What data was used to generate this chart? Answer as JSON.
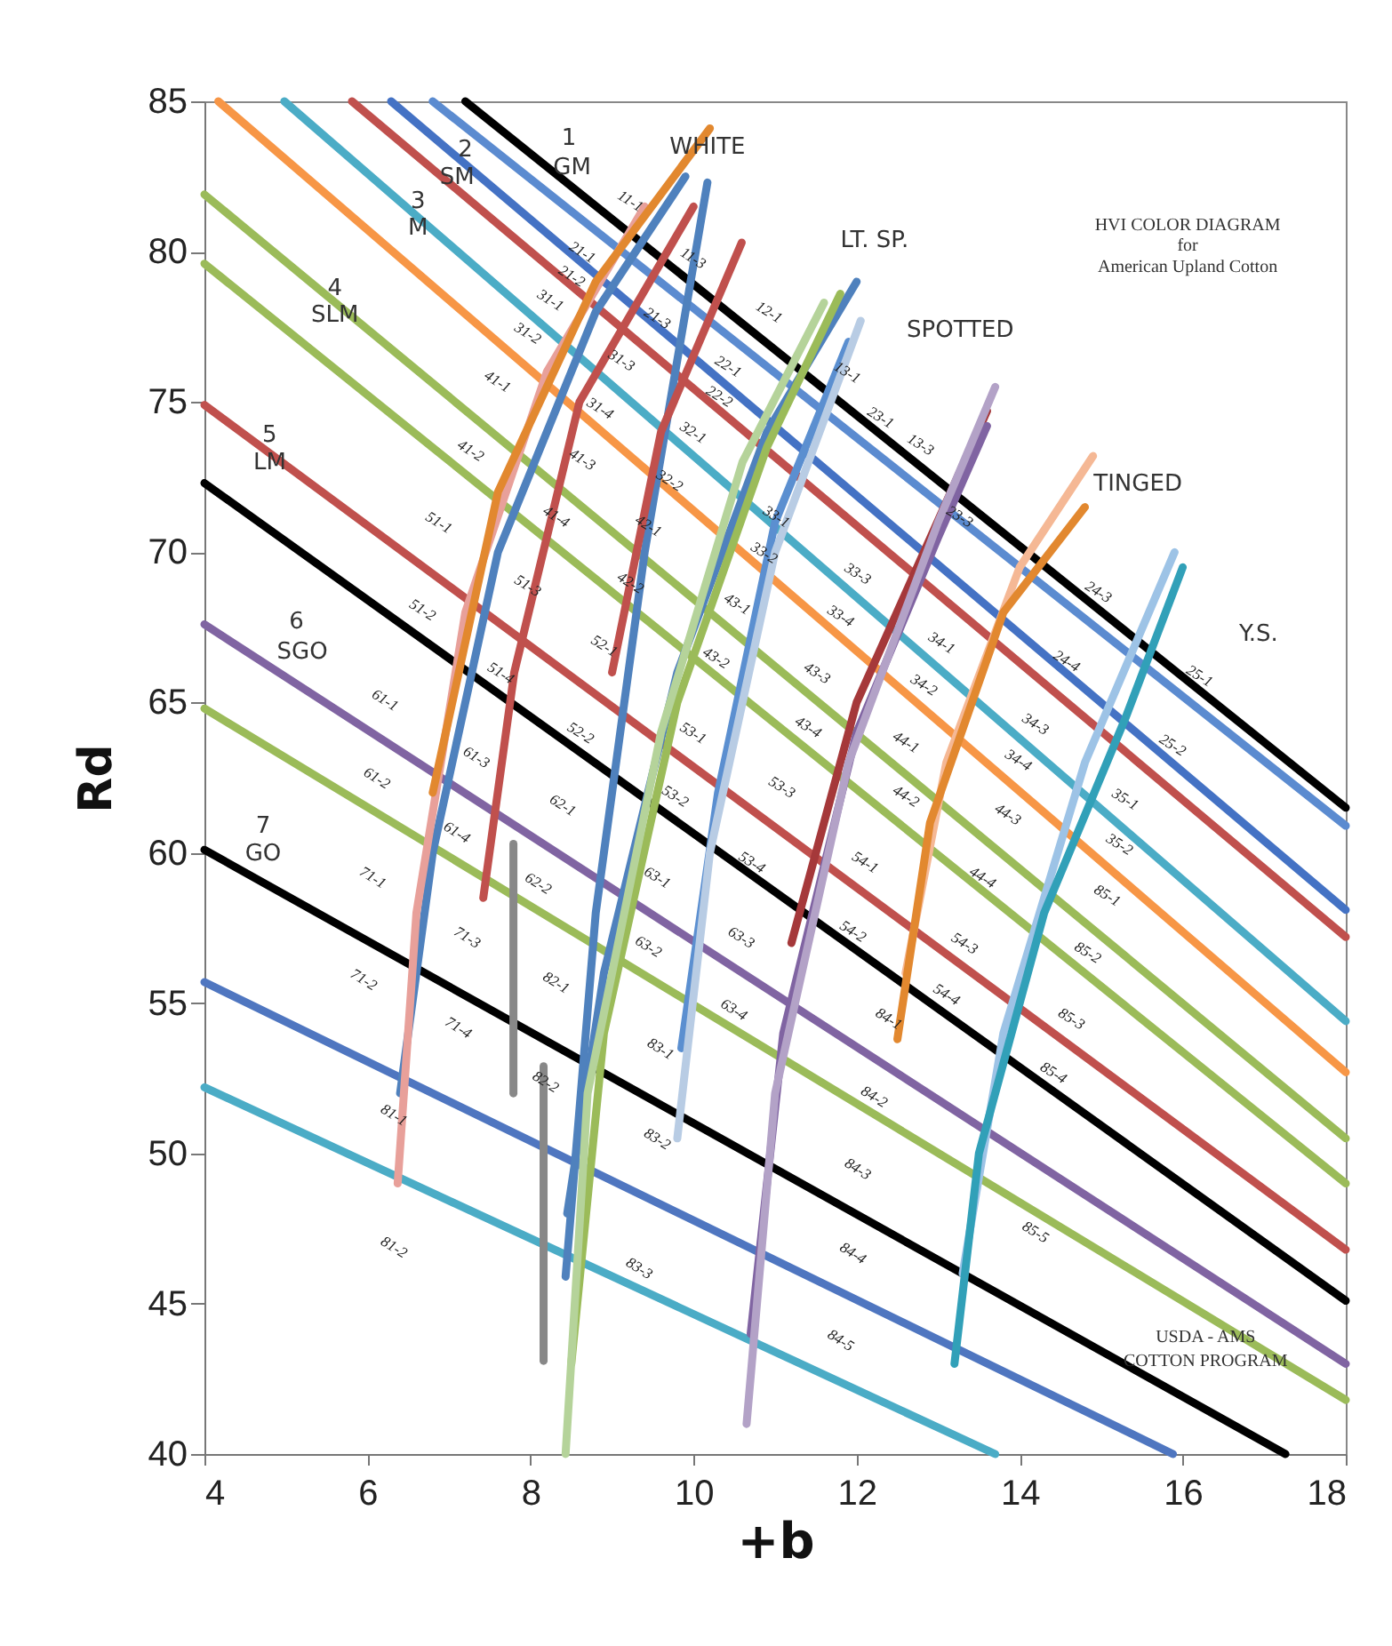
{
  "chart_data": {
    "type": "line",
    "xlabel": "+b",
    "ylabel": "Rd",
    "xlim": [
      4,
      18
    ],
    "ylim": [
      40,
      85
    ],
    "xticks": [
      4,
      6,
      8,
      10,
      12,
      14,
      16,
      18
    ],
    "yticks": [
      40,
      45,
      50,
      55,
      60,
      65,
      70,
      75,
      80,
      85
    ],
    "grid": false,
    "legend": false,
    "marker": "none",
    "line_style": "solid",
    "series": [
      {
        "color": "#000000",
        "x": [
          7.2,
          18
        ],
        "values": [
          85,
          61.5
        ]
      },
      {
        "color": "#5b8bd0",
        "x": [
          6.8,
          18
        ],
        "values": [
          85,
          60.9
        ]
      },
      {
        "color": "#4472c4",
        "x": [
          6.29,
          18
        ],
        "values": [
          85,
          58.1
        ]
      },
      {
        "color": "#c0504d",
        "x": [
          5.81,
          18
        ],
        "values": [
          85,
          57.2
        ]
      },
      {
        "color": "#4bacc6",
        "x": [
          4.98,
          18
        ],
        "values": [
          85,
          54.4
        ]
      },
      {
        "color": "#f79646",
        "x": [
          4.17,
          18
        ],
        "values": [
          85,
          52.7
        ]
      },
      {
        "color": "#9bbb59",
        "x": [
          4,
          18
        ],
        "values": [
          81.9,
          50.5
        ]
      },
      {
        "color": "#9bbb59",
        "x": [
          4,
          18
        ],
        "values": [
          79.6,
          49.0
        ]
      },
      {
        "color": "#c0504d",
        "x": [
          4,
          18
        ],
        "values": [
          74.9,
          46.8
        ]
      },
      {
        "color": "#000000",
        "x": [
          4,
          18
        ],
        "values": [
          72.3,
          45.1
        ]
      },
      {
        "color": "#8064a2",
        "x": [
          4,
          18
        ],
        "values": [
          67.6,
          43.0
        ]
      },
      {
        "color": "#9bbb59",
        "x": [
          4,
          18
        ],
        "values": [
          64.8,
          41.8
        ]
      },
      {
        "color": "#000000",
        "x": [
          4,
          17.26
        ],
        "values": [
          60.1,
          40
        ]
      },
      {
        "color": "#4f76c0",
        "x": [
          4,
          15.88
        ],
        "values": [
          55.7,
          40
        ]
      },
      {
        "color": "#4bacc6",
        "x": [
          4,
          13.7
        ],
        "values": [
          52.2,
          40
        ]
      },
      {
        "color": "#888888",
        "x": [
          7.79,
          7.79
        ],
        "values": [
          60.3,
          52
        ]
      },
      {
        "color": "#888888",
        "x": [
          8.16,
          8.16
        ],
        "values": [
          52.9,
          43.1
        ]
      },
      {
        "color": "#4f81bd",
        "x": [
          6.4,
          6.8,
          7.6,
          8.8,
          9.9
        ],
        "values": [
          52,
          60,
          70,
          78,
          82.5
        ]
      },
      {
        "color": "#e8a09a",
        "x": [
          6.37,
          6.6,
          7.2,
          8.2,
          9.4
        ],
        "values": [
          49,
          58,
          68,
          76,
          81.5
        ]
      },
      {
        "color": "#e2882f",
        "x": [
          6.8,
          7.6,
          8.8,
          10.2
        ],
        "values": [
          62,
          72,
          79,
          84.1
        ]
      },
      {
        "color": "#c0504d",
        "x": [
          7.42,
          7.8,
          8.6,
          10.0
        ],
        "values": [
          58.5,
          66,
          75,
          81.5
        ]
      },
      {
        "color": "#4f81bd",
        "x": [
          8.43,
          8.8,
          9.4,
          10.17
        ],
        "values": [
          45.9,
          58,
          70,
          82.3
        ]
      },
      {
        "color": "#c0504d",
        "x": [
          9.0,
          9.6,
          10.59
        ],
        "values": [
          66,
          74,
          80.3
        ]
      },
      {
        "color": "#4f81bd",
        "x": [
          8.45,
          8.9,
          9.8,
          10.9,
          12.0
        ],
        "values": [
          48,
          56,
          66,
          74,
          79
        ]
      },
      {
        "color": "#9bbb59",
        "x": [
          8.5,
          8.9,
          9.8,
          10.9,
          11.8
        ],
        "values": [
          43,
          54,
          65,
          73.5,
          78.6
        ]
      },
      {
        "color": "#b5d39a",
        "x": [
          8.43,
          8.7,
          9.6,
          10.6,
          11.6
        ],
        "values": [
          40,
          52,
          64,
          73,
          78.3
        ]
      },
      {
        "color": "#5b8fd0",
        "x": [
          9.85,
          10.3,
          11.0,
          11.9
        ],
        "values": [
          53.5,
          62,
          71,
          77
        ]
      },
      {
        "color": "#b8cce4",
        "x": [
          9.8,
          10.2,
          11.0,
          12.05
        ],
        "values": [
          50.5,
          60,
          70,
          77.7
        ]
      },
      {
        "color": "#a5383a",
        "x": [
          11.2,
          12.0,
          13.6
        ],
        "values": [
          57,
          65,
          74.7
        ]
      },
      {
        "color": "#8064a2",
        "x": [
          10.7,
          11.1,
          12.0,
          13.0,
          13.6
        ],
        "values": [
          44,
          54,
          64,
          70.5,
          74.2
        ]
      },
      {
        "color": "#b3a2c7",
        "x": [
          10.65,
          11.0,
          11.9,
          13.0,
          13.7
        ],
        "values": [
          41,
          52,
          63,
          71,
          75.5
        ]
      },
      {
        "color": "#f5b895",
        "x": [
          12.6,
          13.1,
          14.0,
          14.9
        ],
        "values": [
          56,
          63,
          69.5,
          73.2
        ]
      },
      {
        "color": "#e2882f",
        "x": [
          12.5,
          12.9,
          13.8,
          14.8
        ],
        "values": [
          53.8,
          61,
          68,
          71.5
        ]
      },
      {
        "color": "#9dc3e6",
        "x": [
          13.3,
          13.8,
          14.8,
          15.9
        ],
        "values": [
          46,
          54,
          63,
          70
        ]
      },
      {
        "color": "#31a0b8",
        "x": [
          13.2,
          13.5,
          14.3,
          15.3,
          16.0
        ],
        "values": [
          43,
          50,
          58,
          64.5,
          69.5
        ]
      }
    ],
    "annotations": [
      "1",
      "GM",
      "2",
      "SM",
      "3",
      "M",
      "4",
      "SLM",
      "5",
      "LM",
      "6",
      "SGO",
      "7",
      "GO",
      "WHITE",
      "LT. SP.",
      "SPOTTED",
      "TINGED",
      "Y.S.",
      "HVI COLOR DIAGRAM",
      "for",
      "American Upland Cotton",
      "USDA - AMS",
      "COTTON PROGRAM",
      "11-1",
      "11-3",
      "21-1",
      "21-2",
      "31-1",
      "31-2",
      "41-1",
      "41-2",
      "51-1",
      "21-3",
      "31-3",
      "31-4",
      "41-3",
      "41-4",
      "22-1",
      "22-2",
      "32-1",
      "32-2",
      "42-1",
      "12-1",
      "13-1",
      "23-1",
      "13-3",
      "23-3",
      "33-1",
      "51-3",
      "42-2",
      "43-1",
      "33-2",
      "52-1",
      "43-2",
      "51-2",
      "61-1",
      "52-2",
      "53-1",
      "51-4",
      "61-3",
      "61-2",
      "53-2",
      "62-1",
      "61-4",
      "53-4",
      "63-1",
      "62-2",
      "71-1",
      "63-3",
      "71-3",
      "63-2",
      "82-1",
      "71-2",
      "71-4",
      "63-4",
      "83-1",
      "82-2",
      "81-1",
      "83-2",
      "81-2",
      "83-3",
      "33-3",
      "33-4",
      "43-3",
      "43-4",
      "53-3",
      "34-1",
      "34-2",
      "34-3",
      "34-4",
      "44-1",
      "44-2",
      "44-3",
      "44-4",
      "54-1",
      "54-2",
      "54-3",
      "24-3",
      "24-4",
      "25-1",
      "25-2",
      "35-1",
      "35-2",
      "85-1",
      "85-2",
      "54-4",
      "84-1",
      "85-3",
      "85-4",
      "84-2",
      "84-3",
      "85-5",
      "84-4",
      "84-5"
    ]
  }
}
